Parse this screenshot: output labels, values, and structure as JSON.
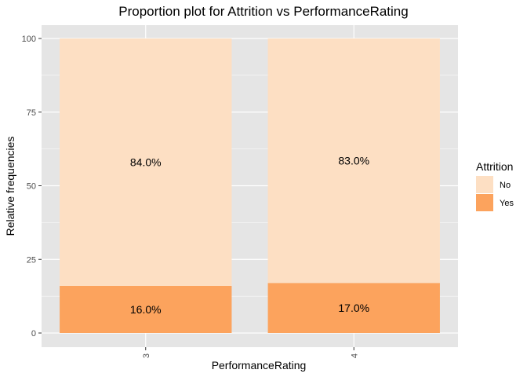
{
  "chart_data": {
    "type": "bar",
    "stacked": true,
    "title": "Proportion plot for Attrition vs PerformanceRating",
    "xlabel": "PerformanceRating",
    "ylabel": "Relative frequencies",
    "categories": [
      "3",
      "4"
    ],
    "ylim": [
      0,
      100
    ],
    "yticks": [
      0,
      25,
      50,
      75,
      100
    ],
    "grid": true,
    "legend": {
      "title": "Attrition",
      "position": "right"
    },
    "series": [
      {
        "name": "Yes",
        "values": [
          16.0,
          17.0
        ],
        "labels": [
          "16.0%",
          "17.0%"
        ],
        "color": "#FCA35D"
      },
      {
        "name": "No",
        "values": [
          84.0,
          83.0
        ],
        "labels": [
          "84.0%",
          "83.0%"
        ],
        "color": "#FDDFC3"
      }
    ],
    "legend_order": [
      "No",
      "Yes"
    ],
    "panel_background": "#E5E5E5",
    "grid_color": "#FFFFFF"
  }
}
